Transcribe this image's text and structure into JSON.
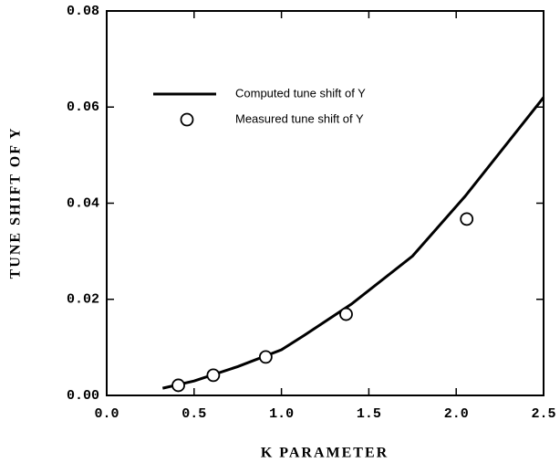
{
  "chart_data": {
    "type": "line",
    "xlabel": "K PARAMETER",
    "ylabel": "TUNE SHIFT OF Y",
    "xlim": [
      0,
      2.5
    ],
    "ylim": [
      0,
      0.08
    ],
    "xticks": [
      {
        "value": 0,
        "label": "0.0"
      },
      {
        "value": 0.5,
        "label": "0.5"
      },
      {
        "value": 1,
        "label": "1.0"
      },
      {
        "value": 1.5,
        "label": "1.5"
      },
      {
        "value": 2,
        "label": "2.0"
      },
      {
        "value": 2.5,
        "label": "2.5"
      }
    ],
    "yticks": [
      {
        "value": 0,
        "label": "0.00"
      },
      {
        "value": 0.02,
        "label": "0.02"
      },
      {
        "value": 0.04,
        "label": "0.04"
      },
      {
        "value": 0.06,
        "label": "0.06"
      },
      {
        "value": 0.08,
        "label": "0.08"
      }
    ],
    "legend": "upper left",
    "grid": false,
    "series": [
      {
        "name": "Computed tune shift of Y",
        "type": "line",
        "color": "#000000",
        "x": [
          0.32,
          0.5,
          0.75,
          1.0,
          1.13,
          1.4,
          1.75,
          2.05,
          2.5
        ],
        "values": [
          0.0015,
          0.003,
          0.006,
          0.0095,
          0.0125,
          0.019,
          0.029,
          0.0414,
          0.062
        ]
      },
      {
        "name": "Measured tune shift of Y",
        "type": "scatter",
        "color": "#000000",
        "x": [
          0.41,
          0.61,
          0.91,
          1.37,
          2.06
        ],
        "values": [
          0.0021,
          0.0042,
          0.008,
          0.0169,
          0.0367
        ]
      }
    ]
  }
}
